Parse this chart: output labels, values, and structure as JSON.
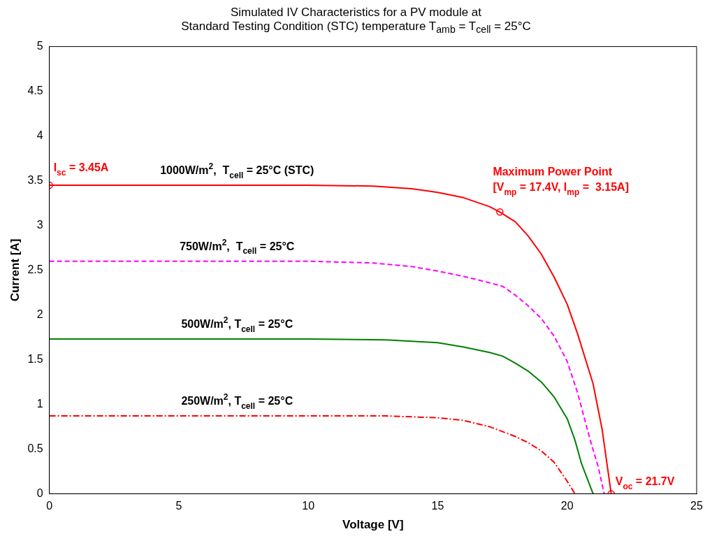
{
  "chart_data": {
    "type": "line",
    "title": "Simulated IV Characteristics for a PV module at\nStandard Testing Condition (STC) temperature T$_{amb}$ = T$_{cell}$ = 25°C",
    "xlabel": "Voltage [V]",
    "ylabel": "Current [A]",
    "xlim": [
      0,
      25
    ],
    "ylim": [
      0,
      5
    ],
    "xticks": [
      0,
      5,
      10,
      15,
      20,
      25
    ],
    "yticks": [
      0,
      0.5,
      1,
      1.5,
      2,
      2.5,
      3,
      3.5,
      4,
      4.5,
      5
    ],
    "grid": false,
    "legend": false,
    "marker": "none",
    "series": [
      {
        "name": "1000W/m$^{2}$,  T$_{cell}$ = 25°C (STC)",
        "color": "#ff0000",
        "line_style": "solid",
        "x": [
          0,
          5,
          10,
          12.5,
          14,
          15,
          16,
          17,
          17.4,
          18,
          18.5,
          19,
          19.5,
          20,
          20.4,
          21,
          21.35,
          21.7
        ],
        "values": [
          3.45,
          3.45,
          3.45,
          3.44,
          3.41,
          3.37,
          3.31,
          3.21,
          3.15,
          3.04,
          2.88,
          2.68,
          2.42,
          2.12,
          1.79,
          1.23,
          0.72,
          0
        ]
      },
      {
        "name": "750W/m$^{2}$,  T$_{cell}$ = 25°C",
        "color": "#ff00ff",
        "line_style": "dashed",
        "x": [
          0,
          10,
          12.5,
          14,
          15,
          16,
          17,
          17.5,
          18,
          18.5,
          19,
          19.5,
          20,
          20.4,
          20.9,
          21.2,
          21.43
        ],
        "values": [
          2.6,
          2.6,
          2.58,
          2.54,
          2.49,
          2.43,
          2.36,
          2.32,
          2.22,
          2.1,
          1.96,
          1.76,
          1.48,
          1.13,
          0.59,
          0.3,
          0
        ]
      },
      {
        "name": "500W/m$^{2}$, T$_{cell}$ = 25°C",
        "color": "#008000",
        "line_style": "solid",
        "x": [
          0,
          10,
          13,
          15,
          16,
          17,
          17.5,
          18,
          18.5,
          19,
          19.5,
          20,
          20.3,
          20.55,
          20.8,
          21.0
        ],
        "values": [
          1.73,
          1.73,
          1.72,
          1.69,
          1.64,
          1.58,
          1.54,
          1.46,
          1.37,
          1.25,
          1.08,
          0.84,
          0.6,
          0.34,
          0.15,
          0
        ]
      },
      {
        "name": "250W/m$^{2}$, T$_{cell}$ = 25°C",
        "color": "#ff0000",
        "line_style": "dotted",
        "x": [
          0,
          10,
          13,
          15,
          16,
          17,
          18,
          18.5,
          19,
          19.5,
          20,
          20.3
        ],
        "values": [
          0.87,
          0.87,
          0.87,
          0.85,
          0.82,
          0.75,
          0.64,
          0.57,
          0.48,
          0.35,
          0.14,
          0
        ]
      },
      {
        "type": "scatter",
        "marker": "circle",
        "color": "#ff0000",
        "x": [
          0,
          17.4,
          21.7
        ],
        "values": [
          3.45,
          3.15,
          0
        ]
      }
    ],
    "annotations": [
      {
        "text": "I$_{sc}$ = 3.45A",
        "x": 0,
        "y": 3.45
      },
      {
        "text": "Maximum Power Point\n[V$_{mp}$ = 17.4V, I$_{mp}$ =  3.15A]",
        "x": 17.4,
        "y": 3.15
      },
      {
        "text": "V$_{oc}$ = 21.7V",
        "x": 21.7,
        "y": 0
      }
    ]
  }
}
